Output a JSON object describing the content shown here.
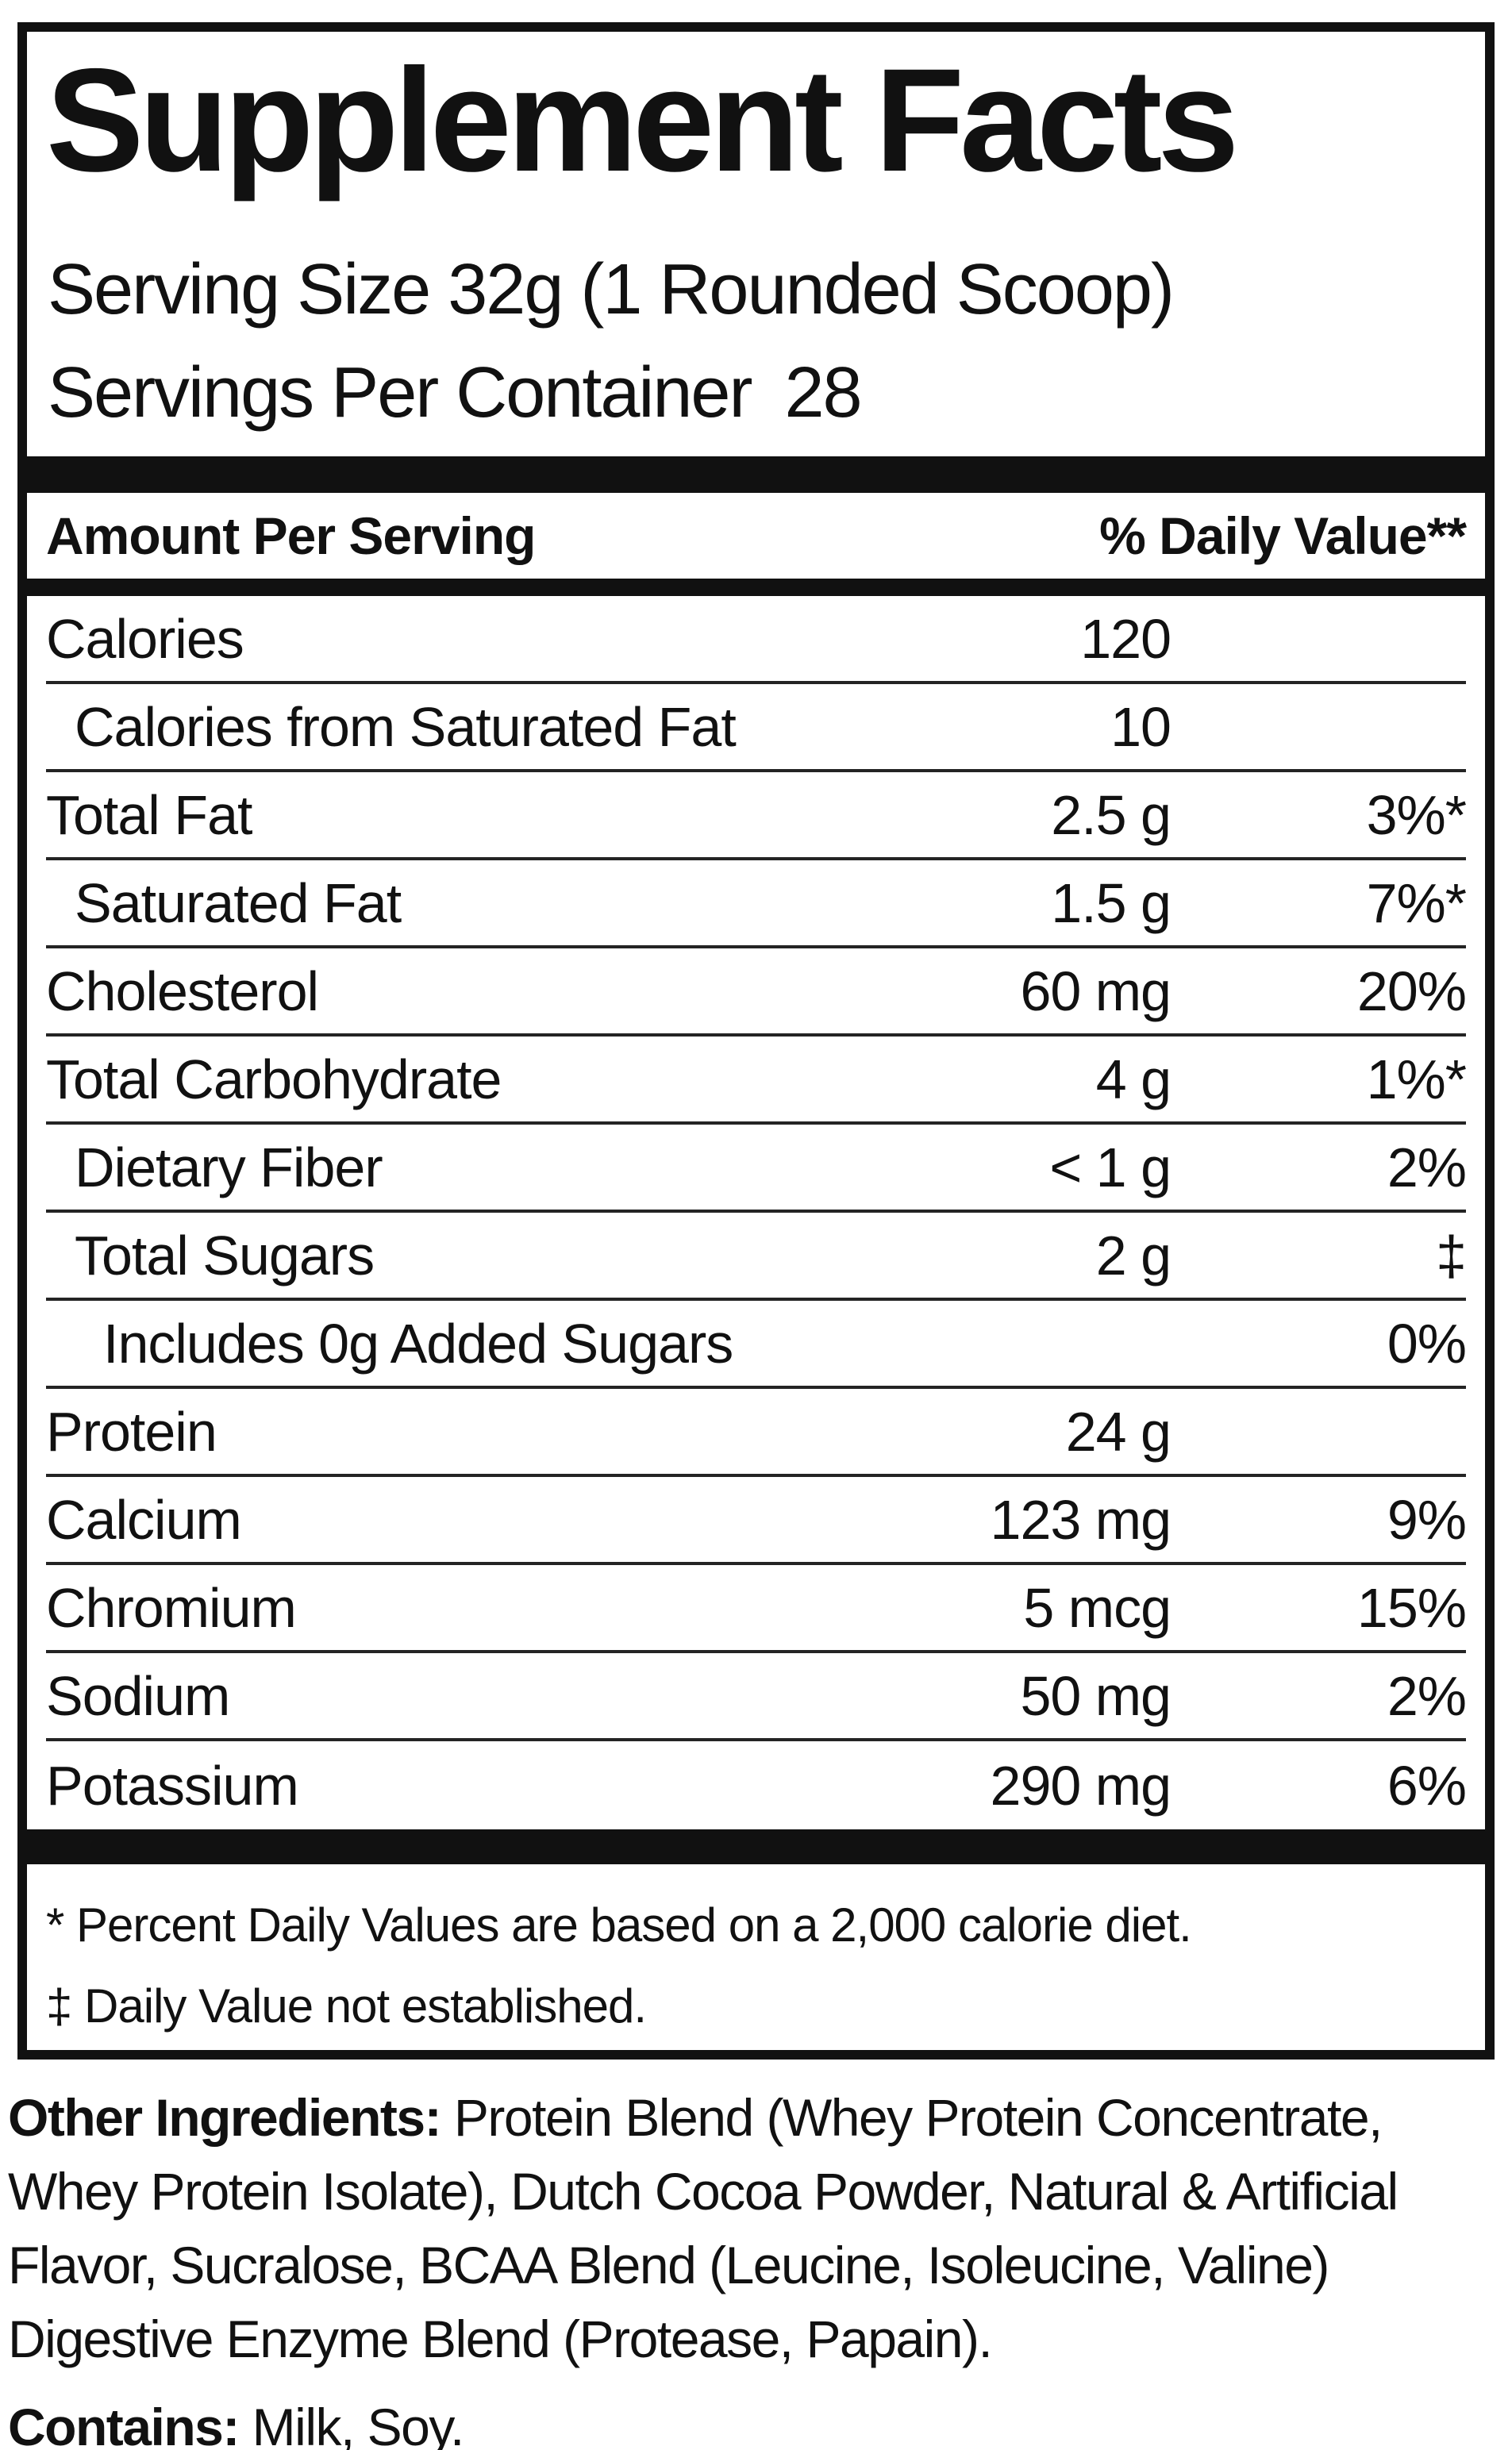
{
  "panel": {
    "title": "Supplement Facts",
    "serving_size": "Serving Size 32g (1 Rounded Scoop)",
    "servings_per_container": {
      "label": "Servings Per Container",
      "value": "28"
    },
    "header": {
      "amount_label": "Amount Per Serving",
      "dv_label": "% Daily Value**"
    },
    "rows": [
      {
        "label": "Calories",
        "amount": "120",
        "dv": "",
        "indent": 0
      },
      {
        "label": "Calories from Saturated Fat",
        "amount": "10",
        "dv": "",
        "indent": 1
      },
      {
        "label": "Total Fat",
        "amount": "2.5 g",
        "dv": "3%*",
        "indent": 0
      },
      {
        "label": "Saturated Fat",
        "amount": "1.5 g",
        "dv": "7%*",
        "indent": 1
      },
      {
        "label": "Cholesterol",
        "amount": "60 mg",
        "dv": "20%",
        "indent": 0
      },
      {
        "label": "Total Carbohydrate",
        "amount": "4 g",
        "dv": "1%*",
        "indent": 0
      },
      {
        "label": "Dietary Fiber",
        "amount": "< 1 g",
        "dv": "2%",
        "indent": 1
      },
      {
        "label": "Total Sugars",
        "amount": "2 g",
        "dv": "‡",
        "indent": 1
      },
      {
        "label": "Includes 0g Added Sugars",
        "amount": "",
        "dv": "0%",
        "indent": 2
      },
      {
        "label": "Protein",
        "amount": "24 g",
        "dv": "",
        "indent": 0
      },
      {
        "label": "Calcium",
        "amount": "123 mg",
        "dv": "9%",
        "indent": 0
      },
      {
        "label": "Chromium",
        "amount": "5 mcg",
        "dv": "15%",
        "indent": 0
      },
      {
        "label": "Sodium",
        "amount": "50 mg",
        "dv": "2%",
        "indent": 0
      },
      {
        "label": "Potassium",
        "amount": "290 mg",
        "dv": "6%",
        "indent": 0
      }
    ],
    "footnotes": [
      "* Percent Daily Values are based on a 2,000 calorie diet.",
      "‡ Daily Value not established."
    ]
  },
  "other_ingredients": {
    "label": "Other Ingredients:",
    "text": "Protein Blend (Whey Protein Concentrate, Whey Protein Isolate), Dutch Cocoa Powder, Natural & Artificial Flavor, Sucralose, BCAA Blend (Leucine, Isoleucine, Valine) Digestive Enzyme Blend (Protease, Papain)."
  },
  "contains": {
    "label": "Contains:",
    "text": "Milk, Soy."
  },
  "colors": {
    "ink": "#111111",
    "background": "#ffffff"
  }
}
